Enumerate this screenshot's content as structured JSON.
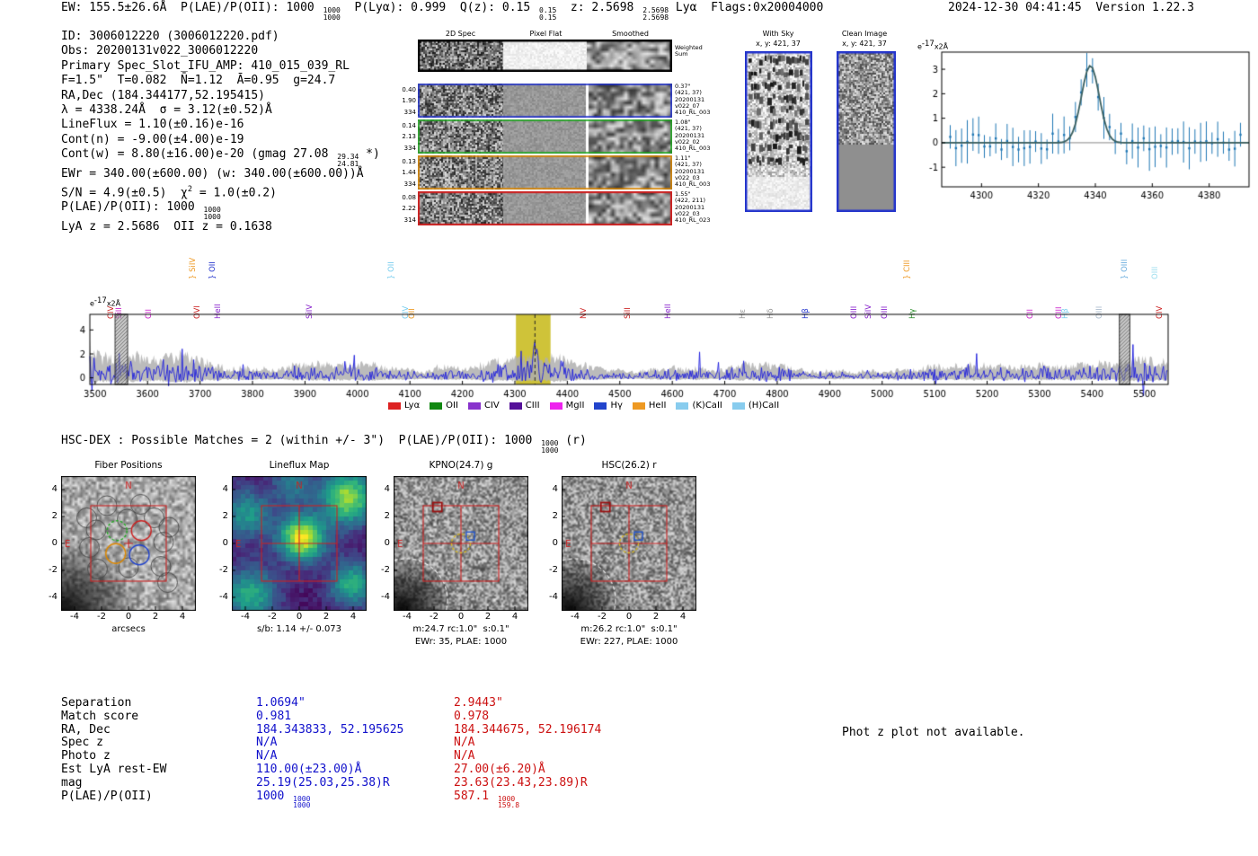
{
  "header": {
    "left": "EW: 155.5±26.6Å  P(LAE)/P(OII): 1000 [[1000|1000]]  P(Lyα): 0.999  Q(z): 0.15 [[0.15|0.15]]  z: 2.5698 [[2.5698|2.5698]] Lyα  Flags:0x20004000",
    "right": "2024-12-30 04:41:45  Version 1.22.3"
  },
  "info": {
    "lines": [
      "ID: 3006012220 (3006012220.pdf)",
      "Obs: 20200131v022_3006012220",
      "Primary Spec_Slot_IFU_AMP: 410_015_039_RL",
      "F=1.5\"  T=0.082  N̄=1.12  Ā=0.95  g=24.7",
      "RA,Dec (184.344177,52.195415)",
      "λ = 4338.24Å  σ = 3.12(±0.52)Å",
      "LineFlux = 1.10(±0.16)e-16",
      "Cont(n) = -9.00(±4.00)e-19",
      "Cont(w) = 8.80(±16.00)e-20 (gmag 27.08 [[29.34|24.81]] *)",
      "EWr = 340.00(±600.00) (w: 340.00(±600.00))Å",
      "S/N = 4.9(±0.5)  χ^{2} = 1.0(±0.2)",
      "P(LAE)/P(OII): 1000 [[1000|1000]]",
      "LyA z = 2.5686  OII z = 0.1638"
    ]
  },
  "spec2d": {
    "col_titles": [
      "2D Spec",
      "Pixel Flat",
      "Smoothed"
    ],
    "weighted_sum_1": "Weighted",
    "weighted_sum_2": "Sum",
    "rows": [
      {
        "left": [
          "0.40",
          "1.90",
          "334"
        ],
        "right": [
          "0.37\"",
          "(421, 37)",
          "20200131",
          "v022_07",
          "410_RL_003"
        ],
        "color": "#2233cc"
      },
      {
        "left": [
          "0.14",
          "2.13",
          "334"
        ],
        "right": [
          "1.08\"",
          "(421, 37)",
          "20200131",
          "v022_02",
          "410_RL_003"
        ],
        "color": "#22aa22"
      },
      {
        "left": [
          "0.13",
          "1.44",
          "334"
        ],
        "right": [
          "1.11\"",
          "(421, 37)",
          "20200131",
          "v022_03",
          "410_RL_003"
        ],
        "color": "#dd8800"
      },
      {
        "left": [
          "0.08",
          "2.22",
          "314"
        ],
        "right": [
          "1.55\"",
          "(422, 211)",
          "20200131",
          "v022_03",
          "410_RL_023"
        ],
        "color": "#cc2222"
      }
    ]
  },
  "sky_panels": {
    "with_sky": {
      "title": "With Sky",
      "subtitle": "x, y: 421, 37"
    },
    "clean": {
      "title": "Clean Image",
      "subtitle": "x, y: 421, 37"
    }
  },
  "hsc_line": "HSC-DEX : Possible Matches = 2 (within +/- 3\")  P(LAE)/P(OII): 1000 [[1000|1000]] (r)",
  "match_table": {
    "row_labels": [
      "Separation",
      "Match score",
      "RA, Dec",
      "Spec z",
      "Photo z",
      "Est LyA rest-EW",
      "mag",
      "P(LAE)/P(OII)"
    ],
    "col1": {
      "color": "#1111cc",
      "values": [
        "1.0694\"",
        "0.981",
        "184.343833, 52.195625",
        "N/A",
        "N/A",
        "110.00(±23.00)Å",
        "25.19(25.03,25.38)R",
        "1000 [[1000|1000]]"
      ]
    },
    "col2": {
      "color": "#cc1111",
      "values": [
        "2.9443\"",
        "0.978",
        "184.344675, 52.196174",
        "N/A",
        "N/A",
        "27.00(±6.20)Å",
        "23.63(23.43,23.89)R",
        "587.1 [[1000|159.8]]"
      ]
    },
    "note": "Phot z plot not available."
  },
  "chart_data": [
    {
      "id": "zoom_spectrum",
      "type": "scatter",
      "ylabel": "e^{-17}x2Å",
      "x_ticks": [
        4300,
        4320,
        4340,
        4360,
        4380
      ],
      "y_ticks": [
        -1,
        0,
        1,
        2,
        3
      ],
      "x_range": [
        4286,
        4394
      ],
      "y_range": [
        -1.8,
        3.7
      ],
      "gaussian": {
        "center": 4338.24,
        "sigma": 3.12,
        "amplitude": 3.15
      },
      "series": [
        {
          "name": "spectrum data",
          "style": "errorbar",
          "color": "#1f77b4"
        },
        {
          "name": "gaussian fit",
          "style": "line",
          "color": "#3a5f5f"
        }
      ]
    },
    {
      "id": "main_spectrum",
      "type": "line",
      "ylabel": "e^{-17}x2Å",
      "x_ticks": [
        3500,
        3600,
        3700,
        3800,
        3900,
        4000,
        4100,
        4200,
        4300,
        4400,
        4500,
        4600,
        4700,
        4800,
        4900,
        5000,
        5100,
        5200,
        5300,
        5400,
        5500
      ],
      "y_ticks": [
        0,
        2,
        4
      ],
      "x_range": [
        3490,
        5545
      ],
      "y_range": [
        -0.55,
        5.3
      ],
      "emission": {
        "center": 4338.24,
        "amplitude": 2.55,
        "sigma": 3.5
      },
      "highlight_band": [
        4302,
        4368
      ],
      "highlight_center": 4338.24,
      "hatch_bands": [
        [
          3538,
          3562
        ],
        [
          5452,
          5472
        ]
      ],
      "noise_profile": {
        "base": 0.78,
        "left_amp": 2.6,
        "left_scale": 130,
        "mid_bump_center": 4350,
        "mid_bump_amp": 0.45,
        "mid_bump_sigma": 95,
        "right_bump_center": 5485,
        "right_bump_amp": 0.3,
        "right_bump_sigma": 70
      },
      "line_labels": [
        {
          "wl": 3538,
          "text": "CIV",
          "color": "#cc2222",
          "tier": 0
        },
        {
          "wl": 3553,
          "text": "SiII",
          "color": "#cc22cc",
          "tier": 0
        },
        {
          "wl": 3610,
          "text": "CII",
          "color": "#cc22cc",
          "tier": 0
        },
        {
          "wl": 3693,
          "text": "} SiIV",
          "color": "#ee9922",
          "tier": 1
        },
        {
          "wl": 3702,
          "text": "OVI",
          "color": "#cc2222",
          "tier": 0
        },
        {
          "wl": 3731,
          "text": "} OII",
          "color": "#2233cc",
          "tier": 1
        },
        {
          "wl": 3742,
          "text": "HeII",
          "color": "#8822cc",
          "tier": 0
        },
        {
          "wl": 3917,
          "text": "SiIV",
          "color": "#8822cc",
          "tier": 0
        },
        {
          "wl": 4072,
          "text": "} OII",
          "color": "#77ccee",
          "tier": 1
        },
        {
          "wl": 4100,
          "text": "CIV",
          "color": "#77ccee",
          "tier": 0
        },
        {
          "wl": 4112,
          "text": "OII",
          "color": "#ee9922",
          "tier": 0
        },
        {
          "wl": 4438,
          "text": "NV",
          "color": "#cc2222",
          "tier": 0
        },
        {
          "wl": 4523,
          "text": "SiII",
          "color": "#cc2222",
          "tier": 0
        },
        {
          "wl": 4600,
          "text": "HeII",
          "color": "#8822cc",
          "tier": 0
        },
        {
          "wl": 4742,
          "text": "Hε",
          "color": "#999999",
          "tier": 0
        },
        {
          "wl": 4795,
          "text": "Hδ",
          "color": "#999999",
          "tier": 0
        },
        {
          "wl": 4862,
          "text": "Hβ",
          "color": "#2233cc",
          "tier": 0
        },
        {
          "wl": 4955,
          "text": "OIII",
          "color": "#8822cc",
          "tier": 0
        },
        {
          "wl": 4982,
          "text": "SiIV",
          "color": "#8822cc",
          "tier": 0
        },
        {
          "wl": 5012,
          "text": "OIII",
          "color": "#8822cc",
          "tier": 0
        },
        {
          "wl": 5055,
          "text": "} CIII",
          "color": "#ee9922",
          "tier": 1
        },
        {
          "wl": 5066,
          "text": "Hγ",
          "color": "#228822",
          "tier": 0
        },
        {
          "wl": 5290,
          "text": "CII",
          "color": "#cc22cc",
          "tier": 0
        },
        {
          "wl": 5345,
          "text": "CIII",
          "color": "#cc22cc",
          "tier": 0
        },
        {
          "wl": 5357,
          "text": "Hβ",
          "color": "#77ccee",
          "tier": 0
        },
        {
          "wl": 5422,
          "text": "OIII",
          "color": "#aabbcc",
          "tier": 0
        },
        {
          "wl": 5470,
          "text": "} OIII",
          "color": "#66aadd",
          "tier": 1
        },
        {
          "wl": 5528,
          "text": "OIII",
          "color": "#99ddee",
          "tier": 1
        },
        {
          "wl": 5536,
          "text": "CIV",
          "color": "#cc2222",
          "tier": 0
        }
      ],
      "legend": [
        {
          "label": "Lyα",
          "color": "#dd2222"
        },
        {
          "label": "OII",
          "color": "#118811"
        },
        {
          "label": "CIV",
          "color": "#8833cc"
        },
        {
          "label": "CIII",
          "color": "#551199"
        },
        {
          "label": "MgII",
          "color": "#ee22ee"
        },
        {
          "label": "Hγ",
          "color": "#2244cc"
        },
        {
          "label": "HeII",
          "color": "#ee9922"
        },
        {
          "label": "(K)CaII",
          "color": "#88ccee"
        },
        {
          "label": "(H)CaII",
          "color": "#88ccee"
        }
      ]
    },
    {
      "id": "fiber_positions",
      "type": "heatmap",
      "title": "Fiber Positions",
      "xlabel": "arcsecs",
      "ticks": [
        -4,
        -2,
        0,
        2,
        4
      ],
      "range": [
        -5,
        5
      ],
      "compass": {
        "north": "N",
        "east": "E"
      }
    },
    {
      "id": "lineflux_map",
      "type": "heatmap",
      "title": "Lineflux Map",
      "caption": "s/b: 1.14 +/- 0.073",
      "ticks": [
        -4,
        -2,
        0,
        2,
        4
      ],
      "range": [
        -5,
        5
      ],
      "compass": {
        "north": "N",
        "east": "E"
      }
    },
    {
      "id": "kpno_g",
      "type": "heatmap",
      "title": "KPNO(24.7) g",
      "caption": "m:24.7 rc:1.0\"  s:0.1\"",
      "caption2": "EWr: 35, PLAE: 1000",
      "ticks": [
        -4,
        -2,
        0,
        2,
        4
      ],
      "range": [
        -5,
        5
      ],
      "compass": {
        "north": "N",
        "east": "E"
      }
    },
    {
      "id": "hsc_r",
      "type": "heatmap",
      "title": "HSC(26.2) r",
      "caption": "m:26.2 rc:1.0\"  s:0.1\"",
      "caption2": "EWr: 227, PLAE: 1000",
      "ticks": [
        -4,
        -2,
        0,
        2,
        4
      ],
      "range": [
        -5,
        5
      ],
      "compass": {
        "north": "N",
        "east": "E"
      }
    }
  ]
}
